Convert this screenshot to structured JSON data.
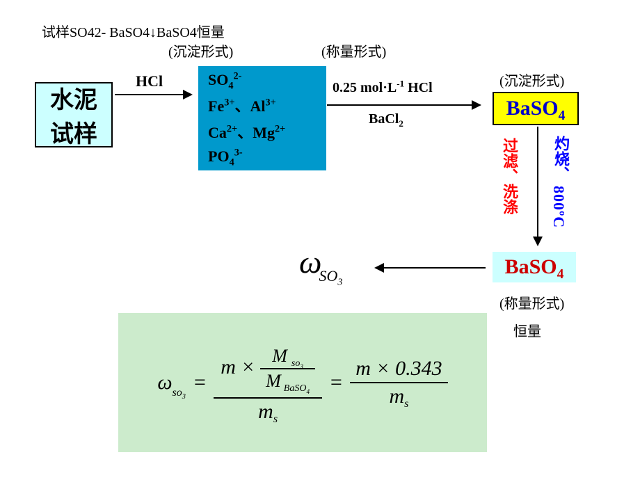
{
  "top_text": "试样SO42-  BaSO4↓BaSO4恒量",
  "sub_labels": {
    "precip_form": "(沉淀形式)",
    "weigh_form": "(称量形式)",
    "const": "恒量"
  },
  "start_box": {
    "line1": "水泥",
    "line2": "试样",
    "bg": "#ccffff",
    "fontsize": 34
  },
  "arrow1": {
    "label": "HCl"
  },
  "ions_box": {
    "bg": "#0099cc",
    "fontsize": 22,
    "lines": [
      {
        "html": "SO<sub>4</sub><sup>2-</sup>"
      },
      {
        "html": "Fe<sup>3+</sup>、Al<sup>3+</sup>"
      },
      {
        "html": "Ca<sup>2+</sup>、Mg<sup>2+</sup>"
      },
      {
        "html": "PO<sub>4</sub><sup>3-</sup>"
      }
    ]
  },
  "arrow2": {
    "top_html": "0.25 mol·L<sup>-1</sup> HCl",
    "bottom_html": "BaCl<sub>2</sub>"
  },
  "baso4_1": {
    "bg": "#ffff00",
    "color": "#0000cc",
    "html": "BaSO<sub>4</sub>",
    "fontsize": 30
  },
  "varrow": {
    "left_label": "过滤、洗涤",
    "left_color": "#ff0000",
    "right_label_cn": "灼烧、",
    "right_label_en": "800ºC",
    "right_color": "#0000ff"
  },
  "baso4_2": {
    "bg": "#ccffff",
    "color": "#cc0000",
    "html": "BaSO<sub>4</sub>",
    "fontsize": 30
  },
  "omega": {
    "html": "ω<sub style='font-style:italic'>SO<sub>3</sub></sub>",
    "fontsize": 40
  },
  "formula": {
    "bg": "#ccebcc",
    "lhs": "ω",
    "lhs_sub": "so₃",
    "num_top": "M",
    "num_top_sub": "so₃",
    "num_bot": "M",
    "num_bot_sub": "BaSO₄",
    "m": "m",
    "ms": "m",
    "s": "s",
    "const": "0.343",
    "fontsize": 30
  },
  "colors": {
    "black": "#000000",
    "red": "#ff0000",
    "blue": "#0000ff",
    "darkblue": "#0000cc",
    "darkred": "#cc0000"
  }
}
